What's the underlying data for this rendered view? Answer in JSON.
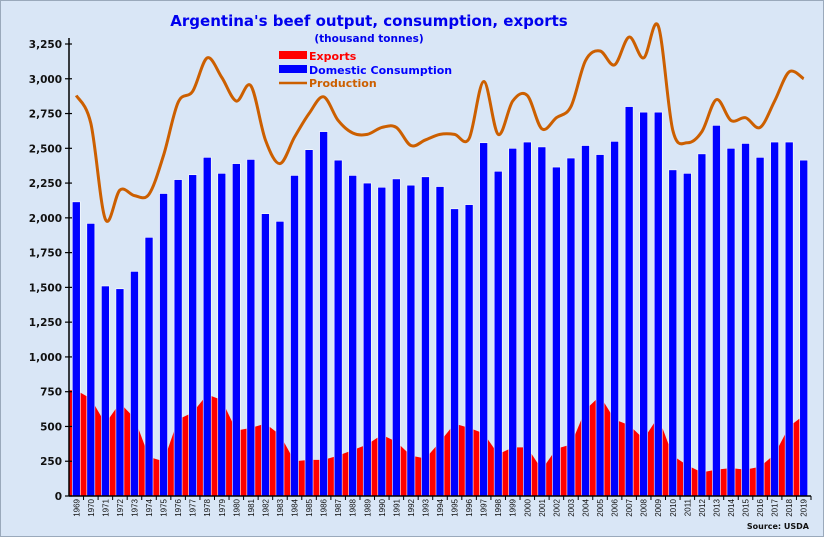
{
  "chart_data": {
    "type": "bar",
    "title": "Argentina's beef output, consumption, exports",
    "subtitle": "(thousand tonnes)",
    "source": "Source: USDA",
    "xlabel": "",
    "ylabel": "",
    "ylim": [
      0,
      3250
    ],
    "yticks": [
      "0",
      "250",
      "500",
      "750",
      "1,000",
      "1,250",
      "1,500",
      "1,750",
      "2,000",
      "2,250",
      "2,500",
      "2,750",
      "3,000",
      "3,250"
    ],
    "legend_position": "top-center",
    "categories": [
      "1969",
      "1970",
      "1971",
      "1972",
      "1973",
      "1974",
      "1975",
      "1976",
      "1977",
      "1978",
      "1979",
      "1980",
      "1981",
      "1982",
      "1983",
      "1984",
      "1985",
      "1986",
      "1987",
      "1988",
      "1989",
      "1990",
      "1991",
      "1992",
      "1993",
      "1994",
      "1995",
      "1996",
      "1997",
      "1998",
      "1999",
      "2000",
      "2001",
      "2002",
      "2003",
      "2004",
      "2005",
      "2006",
      "2007",
      "2008",
      "2009",
      "2010",
      "2011",
      "2012",
      "2013",
      "2014",
      "2015",
      "2016",
      "2017",
      "2018",
      "2019"
    ],
    "series": [
      {
        "name": "Exports",
        "type": "area",
        "color": "#ff0000",
        "values": [
          760,
          700,
          520,
          670,
          560,
          280,
          250,
          550,
          600,
          730,
          690,
          470,
          490,
          520,
          440,
          250,
          260,
          260,
          290,
          330,
          370,
          440,
          390,
          290,
          270,
          390,
          520,
          490,
          450,
          300,
          350,
          350,
          190,
          340,
          370,
          620,
          720,
          550,
          510,
          410,
          570,
          290,
          220,
          170,
          190,
          200,
          190,
          210,
          300,
          500,
          580
        ]
      },
      {
        "name": "Domestic Consumption",
        "type": "bar",
        "color": "#0000ff",
        "values": [
          2115,
          1960,
          1510,
          1490,
          1615,
          1860,
          2175,
          2275,
          2310,
          2435,
          2320,
          2390,
          2420,
          2030,
          1975,
          2305,
          2490,
          2620,
          2415,
          2305,
          2250,
          2220,
          2280,
          2235,
          2295,
          2225,
          2065,
          2095,
          2540,
          2335,
          2500,
          2545,
          2510,
          2365,
          2430,
          2520,
          2455,
          2550,
          2800,
          2760,
          2760,
          2345,
          2320,
          2460,
          2665,
          2500,
          2535,
          2435,
          2545,
          2545,
          2415
        ]
      },
      {
        "name": "Production",
        "type": "line",
        "color": "#cc5f00",
        "values": [
          2880,
          2680,
          1990,
          2200,
          2160,
          2170,
          2450,
          2830,
          2910,
          3150,
          3010,
          2840,
          2950,
          2560,
          2390,
          2580,
          2750,
          2870,
          2700,
          2610,
          2600,
          2650,
          2650,
          2520,
          2560,
          2600,
          2600,
          2570,
          2980,
          2600,
          2840,
          2880,
          2640,
          2720,
          2800,
          3130,
          3200,
          3100,
          3300,
          3150,
          3380,
          2630,
          2540,
          2620,
          2850,
          2700,
          2720,
          2650,
          2840,
          3050,
          3000
        ]
      }
    ]
  }
}
